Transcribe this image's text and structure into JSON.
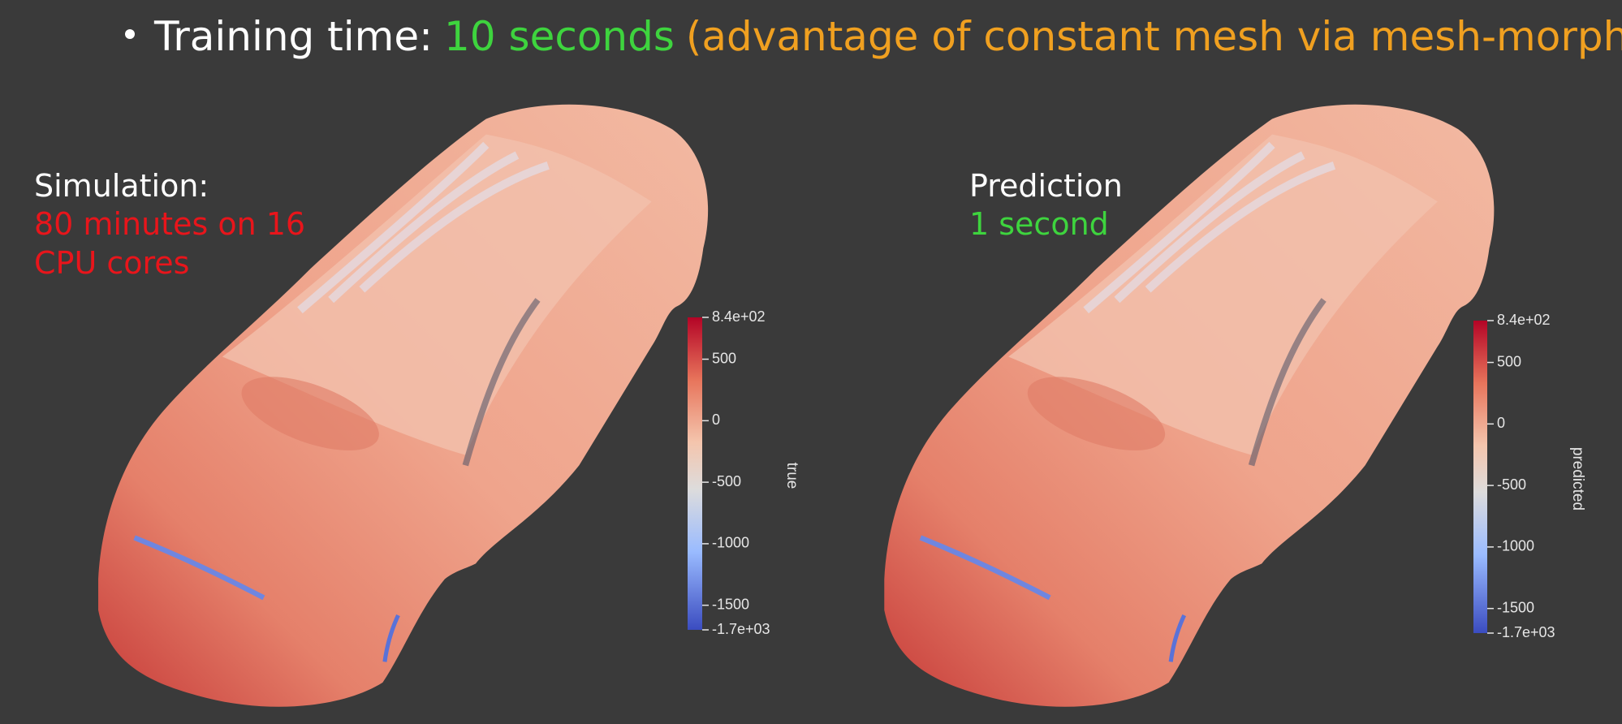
{
  "slide": {
    "bullet": [
      "Training time:",
      "10 seconds",
      "(advantage of constant mesh via mesh-morphing)"
    ],
    "panels": [
      {
        "heading": "Simulation:",
        "lines": [
          "80 minutes on 16",
          "CPU cores"
        ]
      },
      {
        "heading": "Prediction",
        "lines": [
          "1 second"
        ]
      }
    ],
    "colorbars": [
      {
        "title": "true",
        "lim": [
          -1700,
          840
        ],
        "ticks": [
          {
            "value": 840,
            "label": "8.4e+02"
          },
          500,
          0,
          -500,
          -1000,
          -1500,
          {
            "value": -1700,
            "label": "-1.7e+03"
          }
        ]
      },
      {
        "title": "predicted",
        "lim": [
          -1700,
          840
        ],
        "ticks": [
          {
            "value": 840,
            "label": "8.4e+02"
          },
          500,
          0,
          -500,
          -1000,
          -1500,
          {
            "value": -1700,
            "label": "-1.7e+03"
          }
        ]
      }
    ]
  }
}
